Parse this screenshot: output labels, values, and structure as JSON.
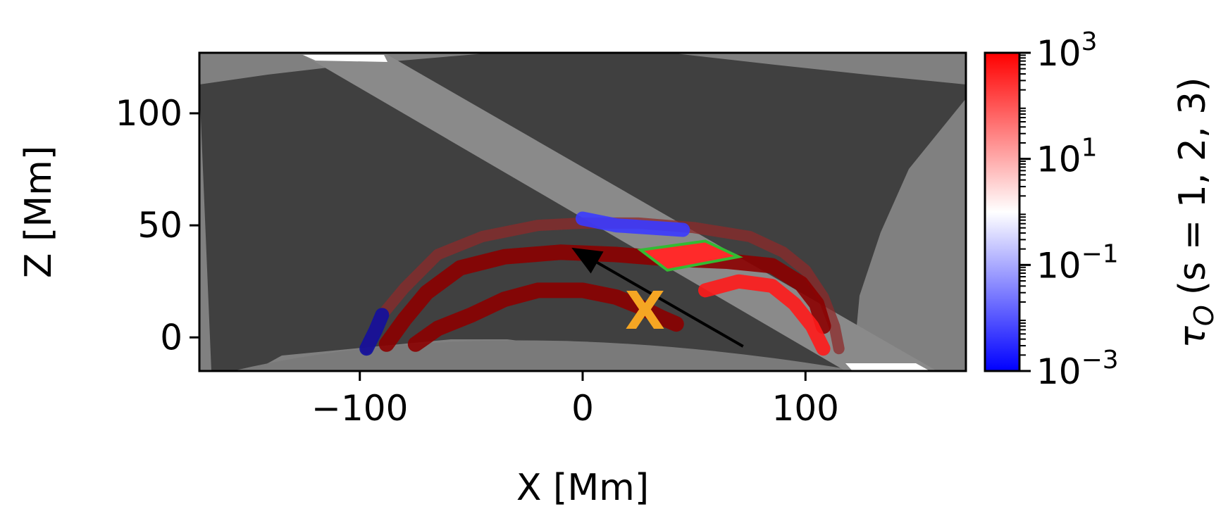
{
  "chart_data": {
    "type": "heatmap",
    "title": "",
    "xlabel": "X [Mm]",
    "ylabel": "Z [Mm]",
    "xlim": [
      -172,
      172
    ],
    "ylim": [
      -15,
      127
    ],
    "x_ticks": [
      -100,
      0,
      100
    ],
    "x_tick_labels": [
      "−100",
      "0",
      "100"
    ],
    "y_ticks": [
      0,
      50,
      100
    ],
    "y_tick_labels": [
      "0",
      "50",
      "100"
    ],
    "grid": false,
    "background_colors": {
      "disk": "#404040",
      "limb": "#808080",
      "beam": "#7f7f7f"
    },
    "colorbar": {
      "label_parts": [
        "τ",
        "O",
        "(s = 1, 2, 3)"
      ],
      "scale": "log",
      "range": [
        0.001,
        1000
      ],
      "ticks": [
        0.001,
        0.1,
        10,
        1000
      ],
      "tick_labels": [
        {
          "base": "10",
          "exp": "−3"
        },
        {
          "base": "10",
          "exp": "−1"
        },
        {
          "base": "10",
          "exp": "1"
        },
        {
          "base": "10",
          "exp": "3"
        }
      ],
      "colormap": "bwr",
      "colors": {
        "low": "#0000ff",
        "mid": "#ffffff",
        "high": "#ff0000"
      }
    },
    "loops": [
      {
        "name": "outer",
        "color": "#8c2a2a",
        "points": [
          [
            -97,
            -5
          ],
          [
            -90,
            10
          ],
          [
            -80,
            22
          ],
          [
            -65,
            37
          ],
          [
            -45,
            45
          ],
          [
            -20,
            50
          ],
          [
            0,
            51
          ],
          [
            25,
            51
          ],
          [
            50,
            49
          ],
          [
            75,
            45
          ],
          [
            90,
            38
          ],
          [
            100,
            30
          ],
          [
            108,
            18
          ],
          [
            113,
            5
          ],
          [
            115,
            -5
          ]
        ]
      },
      {
        "name": "middle",
        "color": "#8b0000",
        "points": [
          [
            -88,
            -3
          ],
          [
            -80,
            8
          ],
          [
            -70,
            20
          ],
          [
            -55,
            31
          ],
          [
            -35,
            36
          ],
          [
            -10,
            38
          ],
          [
            15,
            37
          ],
          [
            40,
            35
          ],
          [
            65,
            34
          ],
          [
            85,
            32
          ],
          [
            98,
            24
          ],
          [
            105,
            15
          ],
          [
            108,
            5
          ]
        ]
      },
      {
        "name": "inner",
        "color": "#8b0000",
        "points": [
          [
            -75,
            -3
          ],
          [
            -65,
            4
          ],
          [
            -50,
            10
          ],
          [
            -35,
            17
          ],
          [
            -20,
            21
          ],
          [
            0,
            21
          ],
          [
            15,
            18
          ],
          [
            25,
            14
          ],
          [
            35,
            9
          ],
          [
            42,
            6
          ]
        ]
      }
    ],
    "opacity_segments": [
      {
        "name": "blue-crossing",
        "color": "#3a3aff",
        "points": [
          [
            0,
            53
          ],
          [
            15,
            50
          ],
          [
            30,
            49
          ],
          [
            45,
            48
          ]
        ]
      },
      {
        "name": "blue-left-leg",
        "color": "#1010a0",
        "points": [
          [
            -97,
            -5
          ],
          [
            -93,
            3
          ],
          [
            -90,
            10
          ]
        ]
      },
      {
        "name": "bright-red-right",
        "color": "#ff1a1a",
        "points": [
          [
            55,
            21
          ],
          [
            70,
            25
          ],
          [
            85,
            23
          ],
          [
            95,
            15
          ],
          [
            103,
            5
          ],
          [
            108,
            -5
          ]
        ]
      }
    ],
    "highlight_region": {
      "name": "selected-region",
      "fill": "#ff2a2a",
      "stroke": "#33bb33",
      "points": [
        [
          26,
          39
        ],
        [
          55,
          43
        ],
        [
          70,
          36
        ],
        [
          38,
          30
        ]
      ]
    },
    "arrow": {
      "from": [
        72,
        -4
      ],
      "to": [
        -5,
        40
      ],
      "color": "#000000"
    },
    "marker": {
      "label": "X",
      "position": [
        28,
        12
      ],
      "color": "#f5a623"
    }
  }
}
